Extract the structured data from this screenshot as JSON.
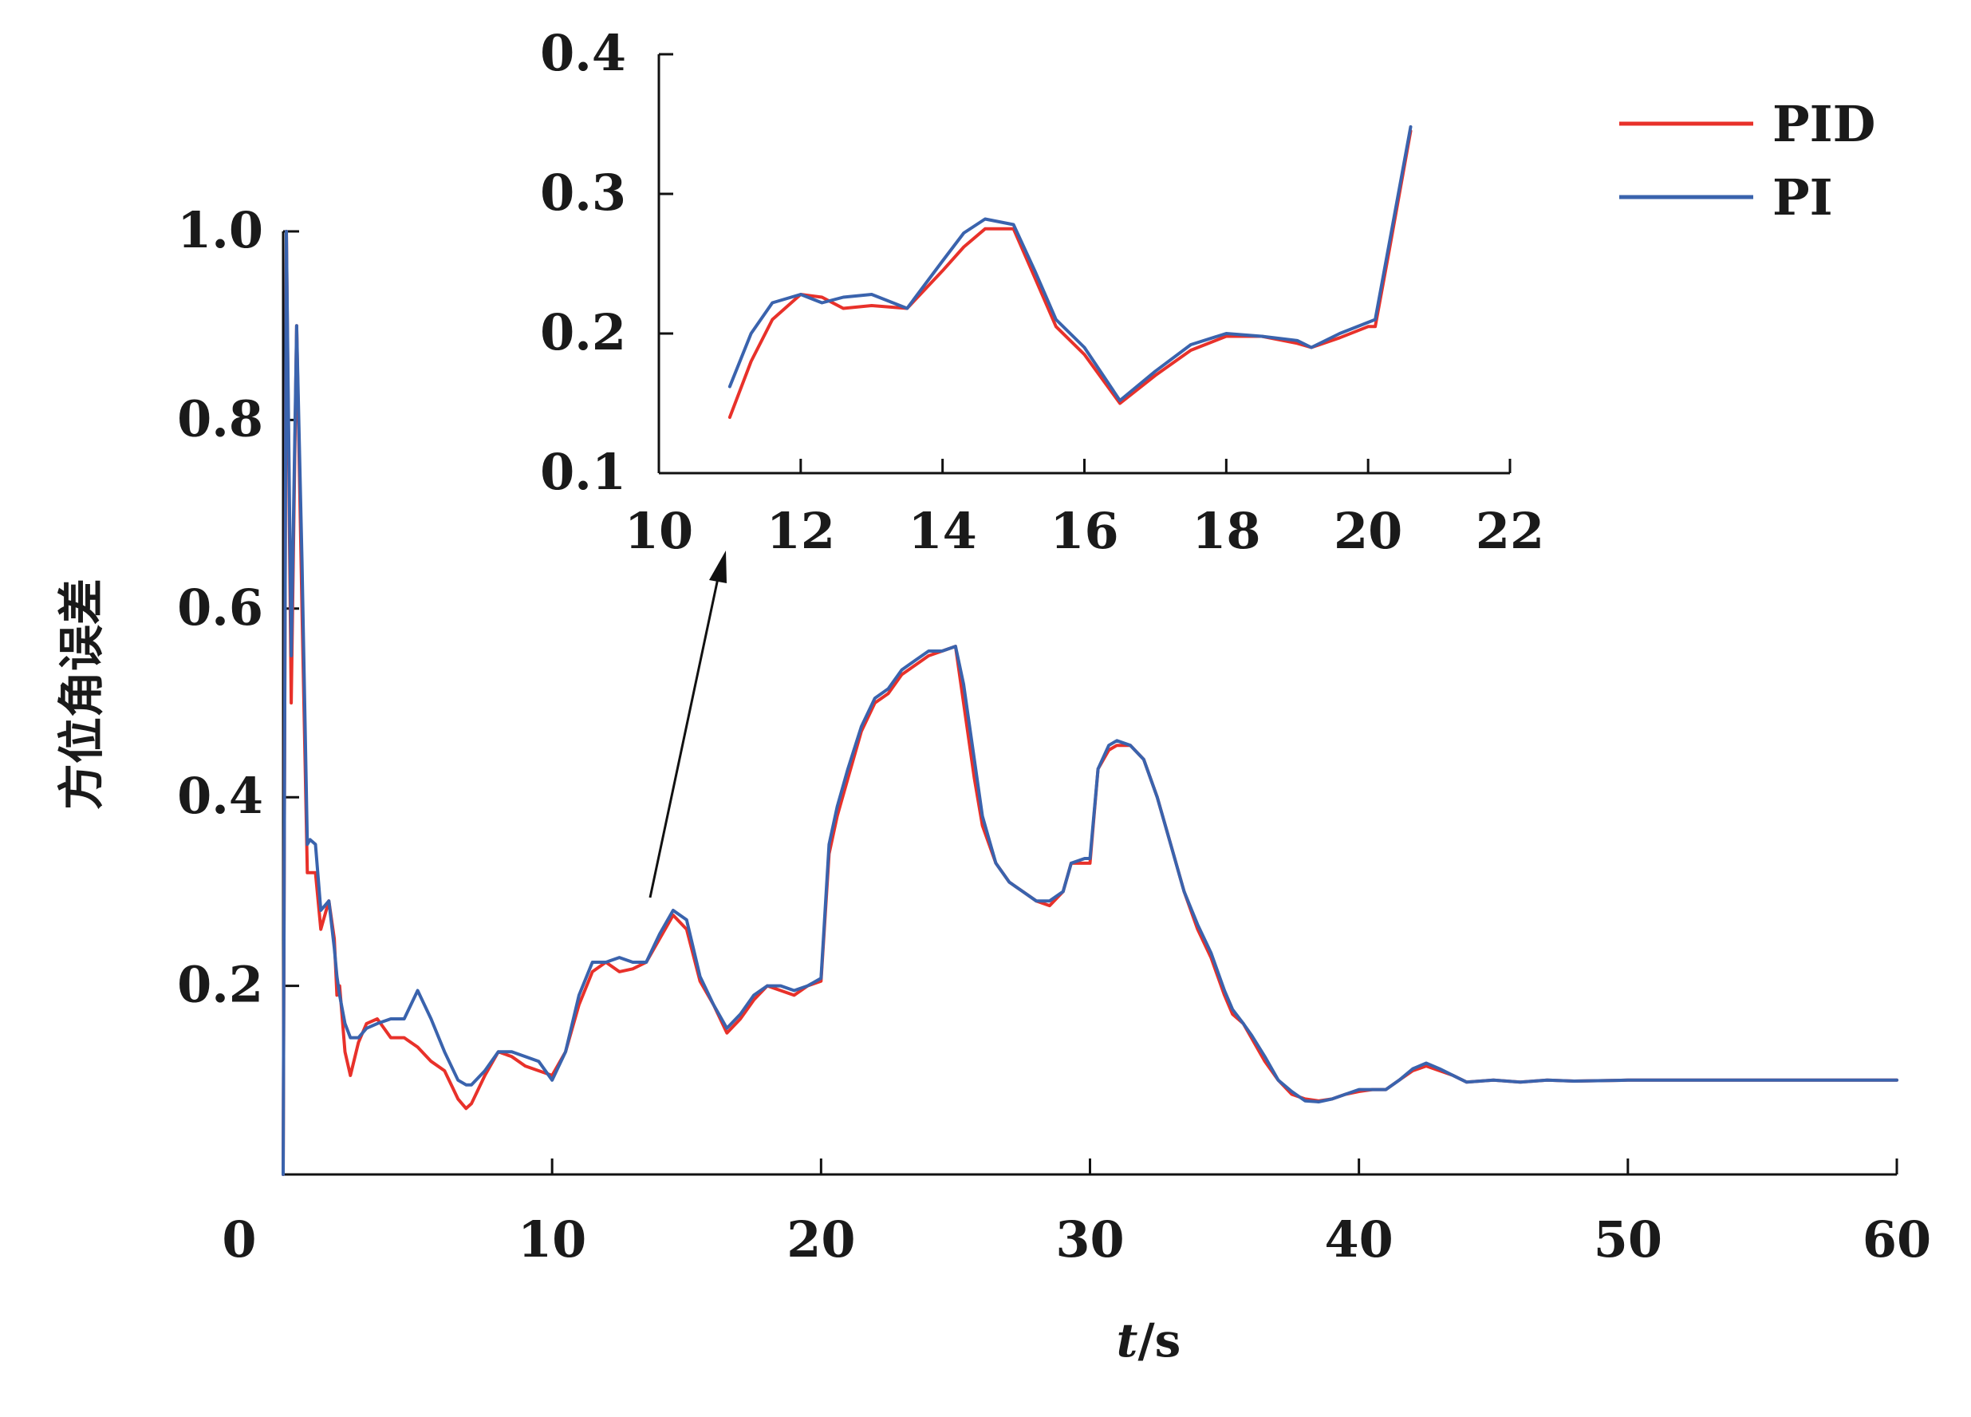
{
  "chart_data": [
    {
      "type": "line",
      "role": "main",
      "title": "",
      "xlabel_italic": "t",
      "xlabel_unit": "/s",
      "ylabel": "方位角误差",
      "xlim": [
        0,
        60
      ],
      "ylim": [
        0,
        1.0
      ],
      "xticks": [
        "0",
        "10",
        "20",
        "30",
        "40",
        "50",
        "60"
      ],
      "yticks": [
        "0.2",
        "0.4",
        "0.6",
        "0.8",
        "1.0"
      ],
      "grid": false,
      "legend_position": "top-right",
      "series": [
        {
          "name": "PID",
          "color": "#e8312a",
          "x": [
            0,
            0.12,
            0.3,
            0.5,
            0.7,
            0.9,
            1.0,
            1.2,
            1.4,
            1.7,
            1.9,
            2.0,
            2.1,
            2.3,
            2.5,
            2.8,
            3.1,
            3.5,
            4.0,
            4.5,
            5.0,
            5.5,
            6.0,
            6.5,
            6.8,
            7.0,
            7.5,
            8.0,
            8.5,
            9.0,
            9.5,
            10.0,
            10.5,
            11.0,
            11.5,
            12.0,
            12.5,
            13.0,
            13.5,
            14.0,
            14.5,
            15.0,
            15.5,
            16.0,
            16.5,
            17.0,
            17.5,
            18.0,
            18.5,
            19.0,
            19.5,
            20.0,
            20.3,
            20.6,
            21.0,
            21.5,
            22.0,
            22.5,
            23.0,
            23.5,
            24.0,
            24.5,
            25.0,
            25.3,
            25.7,
            26.0,
            26.5,
            27.0,
            27.5,
            28.0,
            28.5,
            29.0,
            29.3,
            29.8,
            30.0,
            30.3,
            30.7,
            31.0,
            31.5,
            32.0,
            32.5,
            33.0,
            33.5,
            34.0,
            34.5,
            35.0,
            35.3,
            35.7,
            36.0,
            36.5,
            37.0,
            37.5,
            38.0,
            38.5,
            39.0,
            39.5,
            40.0,
            40.5,
            41.0,
            41.5,
            42.0,
            42.5,
            43.0,
            43.5,
            44.0,
            45.0,
            46.0,
            47.0,
            48.0,
            50.0,
            52.0,
            55.0,
            58.0,
            60.0
          ],
          "y": [
            0.0,
            1.0,
            0.5,
            0.9,
            0.6,
            0.32,
            0.32,
            0.32,
            0.26,
            0.29,
            0.25,
            0.19,
            0.2,
            0.13,
            0.105,
            0.14,
            0.16,
            0.165,
            0.145,
            0.145,
            0.135,
            0.12,
            0.11,
            0.08,
            0.07,
            0.075,
            0.105,
            0.13,
            0.125,
            0.115,
            0.11,
            0.105,
            0.13,
            0.18,
            0.215,
            0.225,
            0.215,
            0.218,
            0.225,
            0.25,
            0.275,
            0.26,
            0.205,
            0.18,
            0.15,
            0.165,
            0.185,
            0.2,
            0.195,
            0.19,
            0.2,
            0.205,
            0.34,
            0.38,
            0.42,
            0.47,
            0.5,
            0.51,
            0.53,
            0.54,
            0.55,
            0.555,
            0.56,
            0.5,
            0.42,
            0.37,
            0.33,
            0.31,
            0.3,
            0.29,
            0.285,
            0.3,
            0.33,
            0.33,
            0.33,
            0.43,
            0.45,
            0.455,
            0.455,
            0.44,
            0.4,
            0.35,
            0.3,
            0.26,
            0.23,
            0.19,
            0.17,
            0.16,
            0.145,
            0.12,
            0.1,
            0.085,
            0.08,
            0.078,
            0.08,
            0.085,
            0.088,
            0.09,
            0.09,
            0.1,
            0.11,
            0.115,
            0.11,
            0.105,
            0.098,
            0.1,
            0.098,
            0.1,
            0.099,
            0.1,
            0.1,
            0.1,
            0.1,
            0.1
          ]
        },
        {
          "name": "PI",
          "color": "#3a63ad",
          "x": [
            0,
            0.12,
            0.3,
            0.5,
            0.7,
            0.9,
            1.0,
            1.2,
            1.4,
            1.7,
            1.9,
            2.0,
            2.1,
            2.3,
            2.5,
            2.8,
            3.1,
            3.5,
            4.0,
            4.5,
            5.0,
            5.5,
            6.0,
            6.5,
            6.8,
            7.0,
            7.5,
            8.0,
            8.5,
            9.0,
            9.5,
            10.0,
            10.5,
            11.0,
            11.5,
            12.0,
            12.5,
            13.0,
            13.5,
            14.0,
            14.5,
            15.0,
            15.5,
            16.0,
            16.5,
            17.0,
            17.5,
            18.0,
            18.5,
            19.0,
            19.5,
            20.0,
            20.3,
            20.6,
            21.0,
            21.5,
            22.0,
            22.5,
            23.0,
            23.5,
            24.0,
            24.5,
            25.0,
            25.3,
            25.7,
            26.0,
            26.5,
            27.0,
            27.5,
            28.0,
            28.5,
            29.0,
            29.3,
            29.8,
            30.0,
            30.3,
            30.7,
            31.0,
            31.5,
            32.0,
            32.5,
            33.0,
            33.5,
            34.0,
            34.5,
            35.0,
            35.3,
            35.7,
            36.0,
            36.5,
            37.0,
            37.5,
            38.0,
            38.5,
            39.0,
            39.5,
            40.0,
            40.5,
            41.0,
            41.5,
            42.0,
            42.5,
            43.0,
            43.5,
            44.0,
            45.0,
            46.0,
            47.0,
            48.0,
            50.0,
            52.0,
            55.0,
            58.0,
            60.0
          ],
          "y": [
            0.0,
            1.0,
            0.55,
            0.9,
            0.65,
            0.35,
            0.355,
            0.35,
            0.28,
            0.29,
            0.24,
            0.21,
            0.19,
            0.16,
            0.145,
            0.145,
            0.155,
            0.16,
            0.165,
            0.165,
            0.195,
            0.165,
            0.13,
            0.1,
            0.095,
            0.095,
            0.11,
            0.13,
            0.13,
            0.125,
            0.12,
            0.1,
            0.13,
            0.19,
            0.225,
            0.225,
            0.23,
            0.225,
            0.225,
            0.255,
            0.28,
            0.27,
            0.21,
            0.18,
            0.155,
            0.17,
            0.19,
            0.2,
            0.2,
            0.195,
            0.2,
            0.208,
            0.35,
            0.39,
            0.43,
            0.475,
            0.505,
            0.515,
            0.535,
            0.545,
            0.555,
            0.555,
            0.56,
            0.52,
            0.44,
            0.38,
            0.33,
            0.31,
            0.3,
            0.29,
            0.29,
            0.3,
            0.33,
            0.335,
            0.335,
            0.43,
            0.455,
            0.46,
            0.455,
            0.44,
            0.4,
            0.35,
            0.3,
            0.265,
            0.235,
            0.195,
            0.175,
            0.16,
            0.148,
            0.125,
            0.1,
            0.088,
            0.078,
            0.077,
            0.08,
            0.085,
            0.09,
            0.09,
            0.09,
            0.1,
            0.112,
            0.118,
            0.112,
            0.105,
            0.098,
            0.1,
            0.098,
            0.1,
            0.099,
            0.1,
            0.1,
            0.1,
            0.1,
            0.1
          ]
        }
      ]
    },
    {
      "type": "line",
      "role": "inset",
      "title": "",
      "xlabel": "",
      "ylabel": "",
      "xlim": [
        10,
        22
      ],
      "ylim": [
        0.1,
        0.4
      ],
      "xticks": [
        "10",
        "12",
        "14",
        "16",
        "18",
        "20",
        "22"
      ],
      "yticks": [
        "0.1",
        "0.2",
        "0.3",
        "0.4"
      ],
      "grid": false,
      "series": [
        {
          "name": "PID",
          "color": "#e8312a",
          "x": [
            11.0,
            11.3,
            11.6,
            12.0,
            12.3,
            12.6,
            13.0,
            13.5,
            14.0,
            14.3,
            14.6,
            15.0,
            15.3,
            15.6,
            16.0,
            16.5,
            17.0,
            17.5,
            18.0,
            18.5,
            19.0,
            19.2,
            19.6,
            20.0,
            20.1,
            20.3,
            20.6
          ],
          "y": [
            0.14,
            0.18,
            0.21,
            0.228,
            0.226,
            0.218,
            0.22,
            0.218,
            0.245,
            0.262,
            0.275,
            0.275,
            0.24,
            0.205,
            0.185,
            0.15,
            0.17,
            0.188,
            0.198,
            0.198,
            0.193,
            0.19,
            0.197,
            0.205,
            0.205,
            0.26,
            0.345
          ]
        },
        {
          "name": "PI",
          "color": "#3a63ad",
          "x": [
            11.0,
            11.3,
            11.6,
            12.0,
            12.3,
            12.6,
            13.0,
            13.5,
            14.0,
            14.3,
            14.6,
            15.0,
            15.3,
            15.6,
            16.0,
            16.5,
            17.0,
            17.5,
            18.0,
            18.5,
            19.0,
            19.2,
            19.6,
            20.0,
            20.1,
            20.3,
            20.6
          ],
          "y": [
            0.162,
            0.2,
            0.222,
            0.228,
            0.222,
            0.226,
            0.228,
            0.218,
            0.252,
            0.272,
            0.282,
            0.278,
            0.245,
            0.21,
            0.19,
            0.152,
            0.173,
            0.192,
            0.2,
            0.198,
            0.195,
            0.19,
            0.2,
            0.208,
            0.21,
            0.265,
            0.348
          ]
        }
      ]
    }
  ],
  "legend": {
    "items": [
      {
        "label": "PID",
        "color": "#e8312a"
      },
      {
        "label": "PI",
        "color": "#3a63ad"
      }
    ]
  }
}
